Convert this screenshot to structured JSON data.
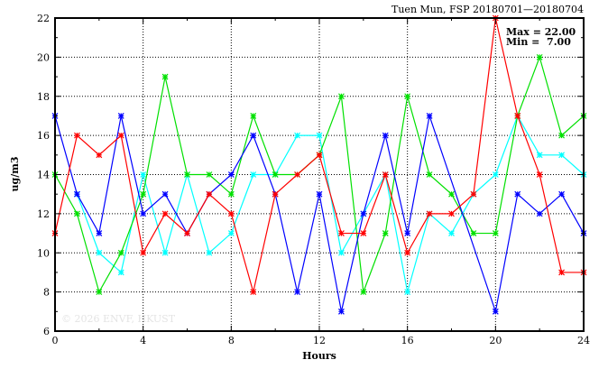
{
  "chart_data": {
    "type": "line",
    "title": "Tuen Mun, FSP 20180701—20180704",
    "xlabel": "Hours",
    "ylabel": "ug/m3",
    "xlim": [
      0,
      24
    ],
    "ylim": [
      6,
      22
    ],
    "xticks": [
      "0",
      "4",
      "8",
      "12",
      "16",
      "20",
      "24"
    ],
    "yticks": [
      "6",
      "8",
      "10",
      "12",
      "14",
      "16",
      "18",
      "20",
      "22"
    ],
    "grid": true,
    "annotations": [
      "Max = 22.00",
      "Min =  7.00"
    ],
    "watermark": "© 2026  ENVF, HKUST",
    "x": [
      0,
      1,
      2,
      3,
      4,
      5,
      6,
      7,
      8,
      9,
      10,
      11,
      12,
      13,
      14,
      15,
      16,
      17,
      18,
      19,
      20,
      21,
      22,
      23,
      24
    ],
    "series": [
      {
        "name": "cyan",
        "color": "#00ffff",
        "values": [
          null,
          13,
          10,
          9,
          14,
          10,
          14,
          10,
          11,
          14,
          14,
          16,
          16,
          10,
          12,
          14,
          8,
          12,
          11,
          13,
          14,
          17,
          15,
          15,
          14
        ]
      },
      {
        "name": "green",
        "color": "#00e000",
        "values": [
          14,
          12,
          8,
          10,
          13,
          19,
          14,
          14,
          13,
          17,
          14,
          14,
          15,
          18,
          8,
          11,
          18,
          14,
          13,
          11,
          11,
          17,
          20,
          16,
          17
        ]
      },
      {
        "name": "blue",
        "color": "#0000ff",
        "values": [
          17,
          13,
          11,
          17,
          12,
          13,
          11,
          13,
          14,
          16,
          13,
          8,
          13,
          7,
          12,
          16,
          11,
          17,
          null,
          null,
          7,
          13,
          12,
          13,
          11
        ]
      },
      {
        "name": "red",
        "color": "#ff0000",
        "values": [
          11,
          16,
          15,
          16,
          10,
          12,
          11,
          13,
          12,
          8,
          13,
          14,
          15,
          11,
          11,
          14,
          10,
          12,
          12,
          13,
          22,
          17,
          14,
          9,
          9
        ]
      }
    ]
  }
}
